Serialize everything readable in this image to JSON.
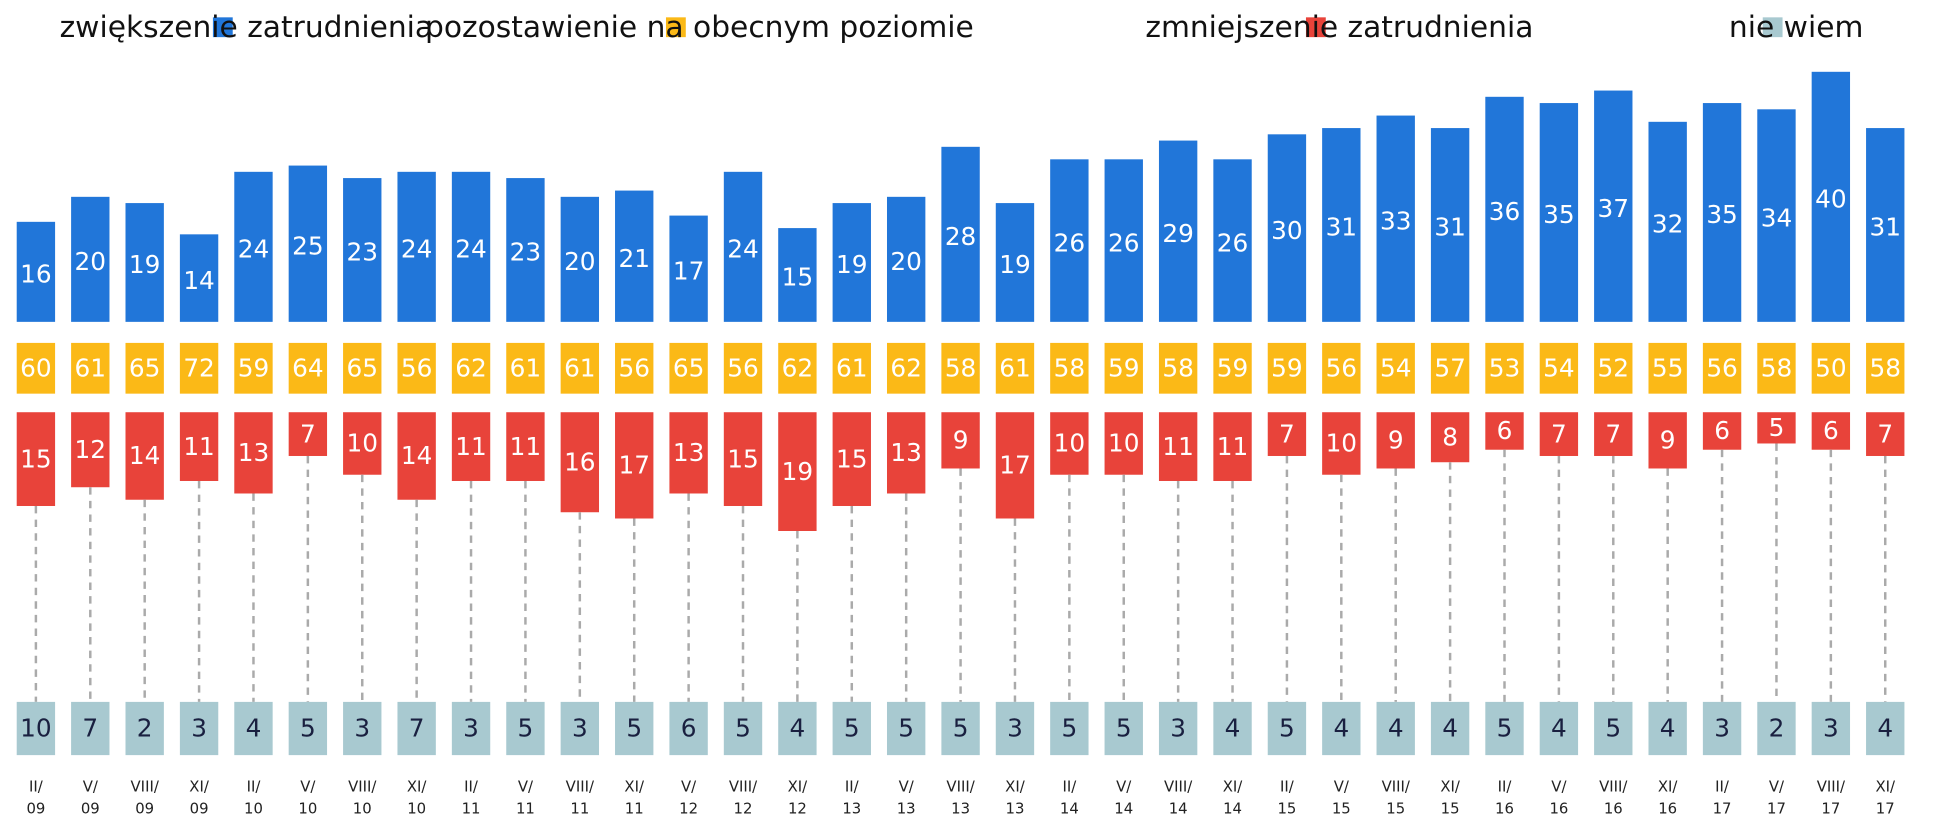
{
  "chart_data": {
    "type": "bar",
    "categories": [
      "II/09",
      "V/09",
      "VIII/09",
      "XI/09",
      "II/10",
      "V/10",
      "VIII/10",
      "XI/10",
      "II/11",
      "V/11",
      "VIII/11",
      "XI/11",
      "V/12",
      "VIII/12",
      "XI/12",
      "II/13",
      "V/13",
      "VIII/13",
      "XI/13",
      "II/14",
      "V/14",
      "VIII/14",
      "XI/14",
      "II/15",
      "V/15",
      "VIII/15",
      "XI/15",
      "II/16",
      "V/16",
      "VIII/16",
      "XI/16",
      "II/17",
      "V/17",
      "VIII/17",
      "XI/17"
    ],
    "series": [
      {
        "name": "zwiększenie zatrudnienia",
        "color": "#2176d9",
        "values": [
          16,
          20,
          19,
          14,
          24,
          25,
          23,
          24,
          24,
          23,
          20,
          21,
          17,
          24,
          15,
          19,
          20,
          28,
          19,
          26,
          26,
          29,
          26,
          30,
          31,
          33,
          31,
          36,
          35,
          37,
          32,
          35,
          34,
          40,
          31
        ]
      },
      {
        "name": "pozostawienie na obecnym poziomie",
        "color": "#fbb917",
        "values": [
          60,
          61,
          65,
          72,
          59,
          64,
          65,
          56,
          62,
          61,
          61,
          56,
          65,
          56,
          62,
          61,
          62,
          58,
          61,
          58,
          59,
          58,
          59,
          59,
          56,
          54,
          57,
          53,
          54,
          52,
          55,
          56,
          58,
          50,
          58
        ]
      },
      {
        "name": "zmniejszenie zatrudnienia",
        "color": "#e8433a",
        "values": [
          15,
          12,
          14,
          11,
          13,
          7,
          10,
          14,
          11,
          11,
          16,
          17,
          13,
          15,
          19,
          15,
          13,
          9,
          17,
          10,
          10,
          11,
          11,
          7,
          10,
          9,
          8,
          6,
          7,
          7,
          9,
          6,
          5,
          6,
          7
        ]
      },
      {
        "name": "nie wiem",
        "color": "#a8c9d0",
        "values": [
          10,
          7,
          2,
          3,
          4,
          5,
          3,
          7,
          3,
          5,
          3,
          5,
          6,
          5,
          4,
          5,
          5,
          5,
          3,
          5,
          5,
          3,
          4,
          5,
          4,
          4,
          4,
          5,
          4,
          5,
          4,
          3,
          2,
          3,
          4
        ]
      }
    ],
    "legend": "top"
  }
}
